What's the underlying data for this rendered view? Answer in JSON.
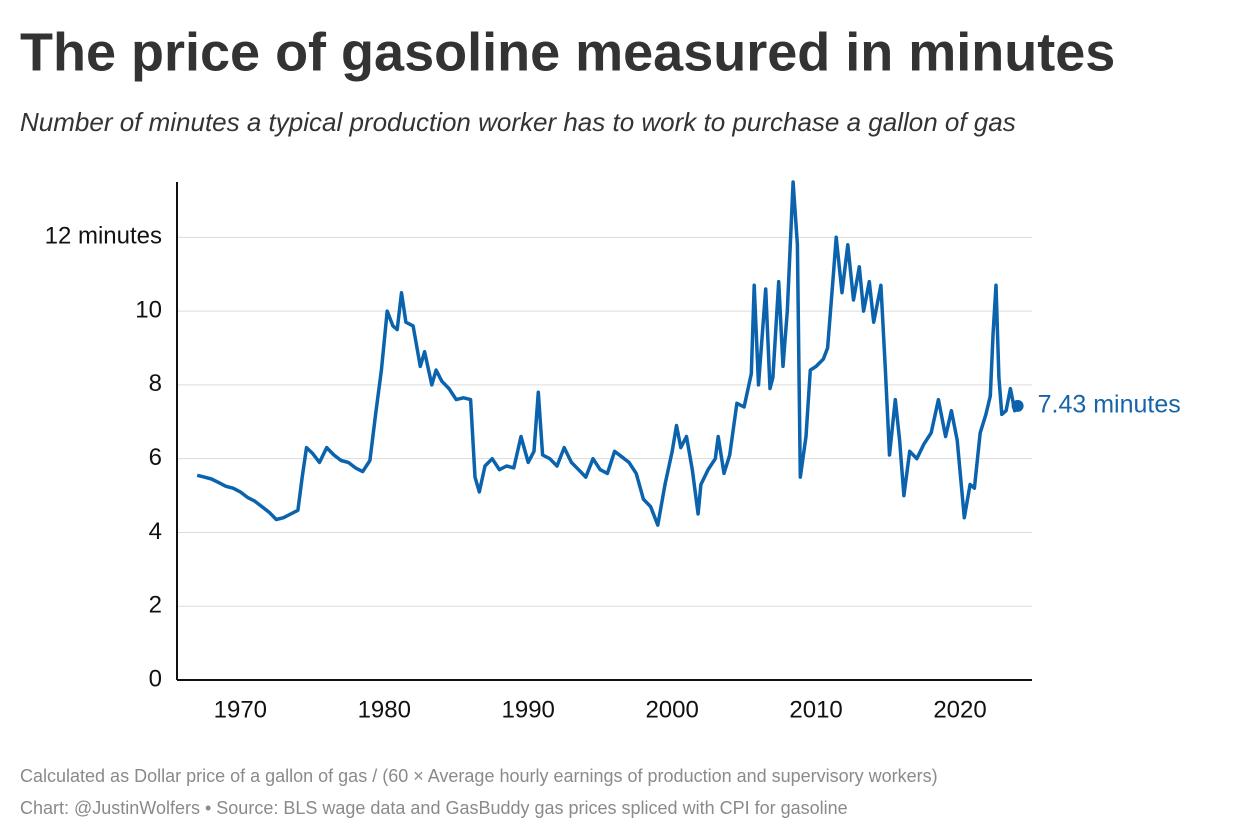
{
  "chart_data": {
    "type": "line",
    "title": "The price of gasoline measured in minutes",
    "subtitle": "Number of minutes a typical production worker has to work to purchase a gallon of gas",
    "notes": [
      "Calculated as Dollar price of a gallon of gas / (60 × Average hourly earnings of production and supervisory workers)",
      "Chart: @JustinWolfers • Source: BLS wage data and GasBuddy gas prices spliced with CPI for gasoline"
    ],
    "end_label": "7.43 minutes",
    "xlim": [
      1965.6,
      2025
    ],
    "ylim": [
      0,
      13.5
    ],
    "xticks": [
      1970,
      1980,
      1990,
      2000,
      2010,
      2020
    ],
    "yticks": [
      0,
      2,
      4,
      6,
      8,
      10,
      {
        "value": 12,
        "label": "12 minutes"
      }
    ],
    "grid": true,
    "x": [
      1967.0,
      1967.5,
      1968,
      1968.5,
      1969,
      1969.5,
      1970,
      1970.5,
      1971,
      1971.5,
      1972,
      1972.5,
      1973,
      1973.5,
      1974,
      1974.3,
      1974.6,
      1975,
      1975.5,
      1976,
      1976.5,
      1977,
      1977.5,
      1978,
      1978.5,
      1979,
      1979.4,
      1979.8,
      1980.2,
      1980.6,
      1980.9,
      1981.2,
      1981.5,
      1982,
      1982.5,
      1982.8,
      1983.3,
      1983.6,
      1984,
      1984.5,
      1985,
      1985.5,
      1986,
      1986.3,
      1986.6,
      1987,
      1987.5,
      1988,
      1988.5,
      1989,
      1989.5,
      1990,
      1990.4,
      1990.7,
      1991,
      1991.5,
      1992,
      1992.5,
      1993,
      1993.5,
      1994,
      1994.5,
      1995,
      1995.5,
      1996,
      1996.5,
      1997,
      1997.5,
      1998,
      1998.5,
      1999,
      1999.5,
      2000,
      2000.3,
      2000.6,
      2001,
      2001.4,
      2001.8,
      2002,
      2002.5,
      2003,
      2003.2,
      2003.6,
      2004,
      2004.5,
      2005,
      2005.5,
      2005.7,
      2006,
      2006.5,
      2006.8,
      2007,
      2007.4,
      2007.7,
      2008,
      2008.4,
      2008.7,
      2008.9,
      2009.3,
      2009.6,
      2010,
      2010.5,
      2010.8,
      2011.2,
      2011.4,
      2011.8,
      2012.2,
      2012.6,
      2013,
      2013.3,
      2013.7,
      2014,
      2014.5,
      2014.8,
      2015.1,
      2015.5,
      2015.8,
      2016.1,
      2016.5,
      2017,
      2017.5,
      2018,
      2018.5,
      2019,
      2019.4,
      2019.8,
      2020.3,
      2020.7,
      2021,
      2021.4,
      2021.8,
      2022.1,
      2022.3,
      2022.5,
      2022.7,
      2022.9,
      2023.2,
      2023.5,
      2023.8,
      2024
    ],
    "series": [
      {
        "color": "#0b63ad",
        "values": [
          5.55,
          5.5,
          5.45,
          5.35,
          5.25,
          5.2,
          5.1,
          4.95,
          4.85,
          4.7,
          4.55,
          4.35,
          4.4,
          4.5,
          4.6,
          5.5,
          6.3,
          6.15,
          5.9,
          6.3,
          6.1,
          5.95,
          5.9,
          5.75,
          5.65,
          5.95,
          7.2,
          8.4,
          10.0,
          9.6,
          9.5,
          10.5,
          9.7,
          9.6,
          8.5,
          8.9,
          8.0,
          8.4,
          8.1,
          7.9,
          7.6,
          7.65,
          7.6,
          5.5,
          5.1,
          5.8,
          6.0,
          5.7,
          5.8,
          5.75,
          6.6,
          5.9,
          6.2,
          7.8,
          6.1,
          6.0,
          5.8,
          6.3,
          5.9,
          5.7,
          5.5,
          6.0,
          5.7,
          5.6,
          6.2,
          6.05,
          5.9,
          5.6,
          4.9,
          4.7,
          4.2,
          5.3,
          6.2,
          6.9,
          6.3,
          6.6,
          5.7,
          4.5,
          5.3,
          5.7,
          6.0,
          6.6,
          5.6,
          6.1,
          7.5,
          7.4,
          8.3,
          10.7,
          8.0,
          10.6,
          7.9,
          8.2,
          10.8,
          8.5,
          10.0,
          13.5,
          11.8,
          5.5,
          6.6,
          8.4,
          8.5,
          8.7,
          9.0,
          11.0,
          12.0,
          10.5,
          11.8,
          10.3,
          11.2,
          10.0,
          10.8,
          9.7,
          10.7,
          8.5,
          6.1,
          7.6,
          6.5,
          5.0,
          6.2,
          6.0,
          6.4,
          6.7,
          7.6,
          6.6,
          7.3,
          6.5,
          4.4,
          5.3,
          5.2,
          6.7,
          7.2,
          7.7,
          9.4,
          10.7,
          8.2,
          7.2,
          7.3,
          7.9,
          7.3,
          7.43
        ]
      }
    ]
  }
}
